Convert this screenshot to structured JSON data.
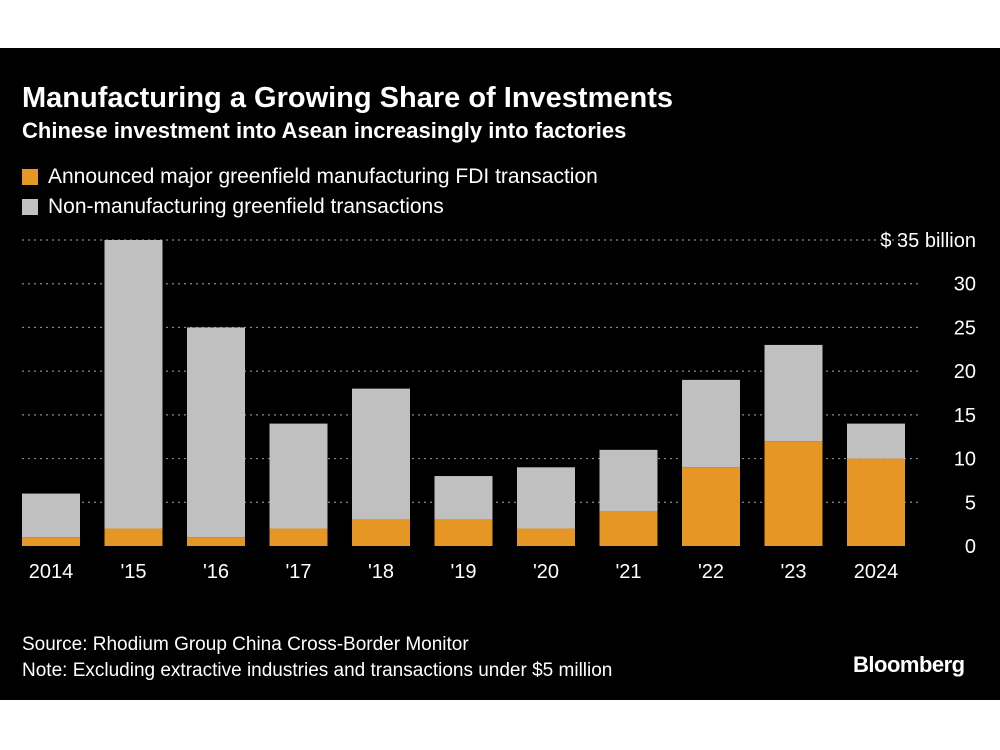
{
  "header": {
    "title": "Manufacturing a Growing Share of Investments",
    "subtitle": "Chinese investment into Asean increasingly into factories"
  },
  "legend": [
    {
      "label": "Announced major greenfield manufacturing FDI transaction",
      "color": "#e69624"
    },
    {
      "label": "Non-manufacturing greenfield transactions",
      "color": "#c0c0c0"
    }
  ],
  "footer": {
    "source": "Source: Rhodium Group China Cross-Border Monitor",
    "note": "Note: Excluding extractive industries and transactions under $5 million",
    "logo": "Bloomberg"
  },
  "chart_data": {
    "type": "bar",
    "stacked": true,
    "title": "Manufacturing a Growing Share of Investments",
    "subtitle": "Chinese investment into Asean increasingly into factories",
    "categories": [
      "2014",
      "'15",
      "'16",
      "'17",
      "'18",
      "'19",
      "'20",
      "'21",
      "'22",
      "'23",
      "2024"
    ],
    "series": [
      {
        "name": "Announced major greenfield manufacturing FDI transaction",
        "color": "#e69624",
        "values": [
          1,
          2,
          1,
          2,
          3,
          3,
          2,
          4,
          9,
          12,
          10
        ]
      },
      {
        "name": "Non-manufacturing greenfield transactions",
        "color": "#c0c0c0",
        "values": [
          5,
          33,
          24,
          12,
          15,
          5,
          7,
          7,
          10,
          11,
          4
        ]
      }
    ],
    "ylim": [
      0,
      35
    ],
    "yticks": [
      0,
      5,
      10,
      15,
      20,
      25,
      30,
      35
    ],
    "ytick_labels": [
      "0",
      "5",
      "10",
      "15",
      "20",
      "25",
      "30",
      "$ 35 billion"
    ],
    "xlabel": "",
    "ylabel": "",
    "grid": true,
    "legend_position": "top-left"
  }
}
